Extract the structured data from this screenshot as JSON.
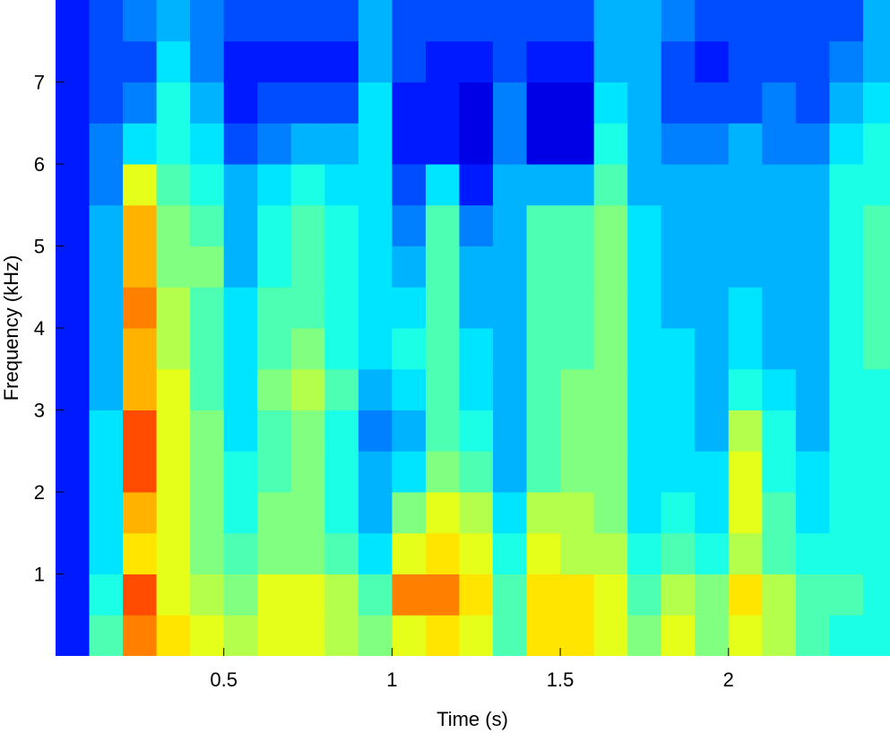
{
  "chart_data": {
    "type": "heatmap",
    "xlabel": "Time (s)",
    "ylabel": "Frequency (kHz)",
    "colormap": "jet",
    "clim": [
      0,
      1
    ],
    "xlim": [
      0,
      2.48
    ],
    "ylim": [
      0,
      8
    ],
    "xticks": [
      0.5,
      1,
      1.5,
      2
    ],
    "yticks": [
      1,
      2,
      3,
      4,
      5,
      6,
      7
    ],
    "x": [
      0.05,
      0.15,
      0.25,
      0.35,
      0.45,
      0.55,
      0.65,
      0.75,
      0.85,
      0.95,
      1.05,
      1.15,
      1.25,
      1.35,
      1.45,
      1.55,
      1.65,
      1.75,
      1.85,
      1.95,
      2.05,
      2.15,
      2.25,
      2.35,
      2.45
    ],
    "y": [
      0.25,
      0.75,
      1.25,
      1.75,
      2.25,
      2.75,
      3.25,
      3.75,
      4.25,
      4.75,
      5.25,
      5.75,
      6.25,
      6.75,
      7.25,
      7.75
    ],
    "z": [
      [
        0.15,
        0.45,
        0.75,
        0.65,
        0.6,
        0.55,
        0.6,
        0.6,
        0.55,
        0.5,
        0.6,
        0.65,
        0.6,
        0.45,
        0.65,
        0.65,
        0.6,
        0.5,
        0.6,
        0.5,
        0.6,
        0.55,
        0.45,
        0.4,
        0.4
      ],
      [
        0.15,
        0.4,
        0.8,
        0.6,
        0.55,
        0.5,
        0.6,
        0.6,
        0.55,
        0.45,
        0.75,
        0.75,
        0.65,
        0.45,
        0.65,
        0.65,
        0.6,
        0.45,
        0.55,
        0.5,
        0.65,
        0.55,
        0.45,
        0.45,
        0.4
      ],
      [
        0.15,
        0.35,
        0.65,
        0.6,
        0.5,
        0.45,
        0.5,
        0.5,
        0.45,
        0.35,
        0.6,
        0.65,
        0.6,
        0.4,
        0.6,
        0.55,
        0.55,
        0.4,
        0.45,
        0.4,
        0.55,
        0.45,
        0.4,
        0.4,
        0.4
      ],
      [
        0.15,
        0.35,
        0.7,
        0.6,
        0.5,
        0.4,
        0.5,
        0.5,
        0.4,
        0.3,
        0.5,
        0.6,
        0.55,
        0.35,
        0.55,
        0.55,
        0.5,
        0.35,
        0.4,
        0.35,
        0.6,
        0.45,
        0.35,
        0.4,
        0.4
      ],
      [
        0.15,
        0.35,
        0.8,
        0.6,
        0.5,
        0.4,
        0.45,
        0.5,
        0.4,
        0.3,
        0.35,
        0.5,
        0.45,
        0.3,
        0.45,
        0.5,
        0.5,
        0.35,
        0.35,
        0.35,
        0.6,
        0.4,
        0.35,
        0.4,
        0.4
      ],
      [
        0.15,
        0.35,
        0.8,
        0.6,
        0.5,
        0.35,
        0.45,
        0.5,
        0.4,
        0.25,
        0.3,
        0.45,
        0.4,
        0.3,
        0.45,
        0.5,
        0.5,
        0.35,
        0.35,
        0.3,
        0.55,
        0.4,
        0.3,
        0.4,
        0.4
      ],
      [
        0.15,
        0.3,
        0.7,
        0.6,
        0.45,
        0.35,
        0.5,
        0.55,
        0.45,
        0.3,
        0.35,
        0.45,
        0.35,
        0.3,
        0.45,
        0.5,
        0.5,
        0.35,
        0.35,
        0.3,
        0.4,
        0.35,
        0.3,
        0.4,
        0.4
      ],
      [
        0.15,
        0.3,
        0.7,
        0.55,
        0.45,
        0.35,
        0.45,
        0.5,
        0.4,
        0.35,
        0.4,
        0.45,
        0.35,
        0.3,
        0.45,
        0.45,
        0.5,
        0.35,
        0.35,
        0.3,
        0.35,
        0.3,
        0.3,
        0.4,
        0.45
      ],
      [
        0.15,
        0.3,
        0.75,
        0.55,
        0.45,
        0.35,
        0.45,
        0.45,
        0.4,
        0.35,
        0.35,
        0.45,
        0.3,
        0.3,
        0.45,
        0.45,
        0.5,
        0.35,
        0.3,
        0.3,
        0.35,
        0.3,
        0.3,
        0.4,
        0.45
      ],
      [
        0.15,
        0.3,
        0.7,
        0.5,
        0.5,
        0.3,
        0.4,
        0.45,
        0.4,
        0.35,
        0.3,
        0.45,
        0.3,
        0.3,
        0.45,
        0.45,
        0.5,
        0.35,
        0.3,
        0.3,
        0.3,
        0.3,
        0.3,
        0.4,
        0.45
      ],
      [
        0.15,
        0.3,
        0.7,
        0.5,
        0.45,
        0.3,
        0.4,
        0.45,
        0.4,
        0.35,
        0.25,
        0.45,
        0.25,
        0.3,
        0.45,
        0.45,
        0.5,
        0.35,
        0.3,
        0.3,
        0.3,
        0.3,
        0.3,
        0.4,
        0.45
      ],
      [
        0.15,
        0.25,
        0.6,
        0.45,
        0.4,
        0.3,
        0.35,
        0.4,
        0.35,
        0.35,
        0.2,
        0.35,
        0.15,
        0.3,
        0.3,
        0.3,
        0.45,
        0.3,
        0.3,
        0.3,
        0.3,
        0.3,
        0.3,
        0.4,
        0.4
      ],
      [
        0.15,
        0.25,
        0.35,
        0.4,
        0.35,
        0.2,
        0.25,
        0.3,
        0.3,
        0.35,
        0.15,
        0.15,
        0.1,
        0.25,
        0.1,
        0.1,
        0.4,
        0.3,
        0.25,
        0.25,
        0.3,
        0.25,
        0.25,
        0.35,
        0.4
      ],
      [
        0.15,
        0.2,
        0.25,
        0.4,
        0.3,
        0.15,
        0.2,
        0.2,
        0.2,
        0.35,
        0.15,
        0.15,
        0.1,
        0.25,
        0.1,
        0.1,
        0.35,
        0.3,
        0.2,
        0.2,
        0.2,
        0.25,
        0.2,
        0.3,
        0.35
      ],
      [
        0.15,
        0.2,
        0.2,
        0.35,
        0.25,
        0.15,
        0.15,
        0.15,
        0.15,
        0.3,
        0.2,
        0.15,
        0.15,
        0.2,
        0.15,
        0.15,
        0.3,
        0.3,
        0.2,
        0.15,
        0.2,
        0.2,
        0.2,
        0.25,
        0.3
      ],
      [
        0.15,
        0.2,
        0.25,
        0.3,
        0.25,
        0.2,
        0.2,
        0.2,
        0.2,
        0.3,
        0.2,
        0.2,
        0.2,
        0.2,
        0.2,
        0.2,
        0.3,
        0.3,
        0.25,
        0.2,
        0.2,
        0.2,
        0.2,
        0.2,
        0.3
      ]
    ]
  }
}
